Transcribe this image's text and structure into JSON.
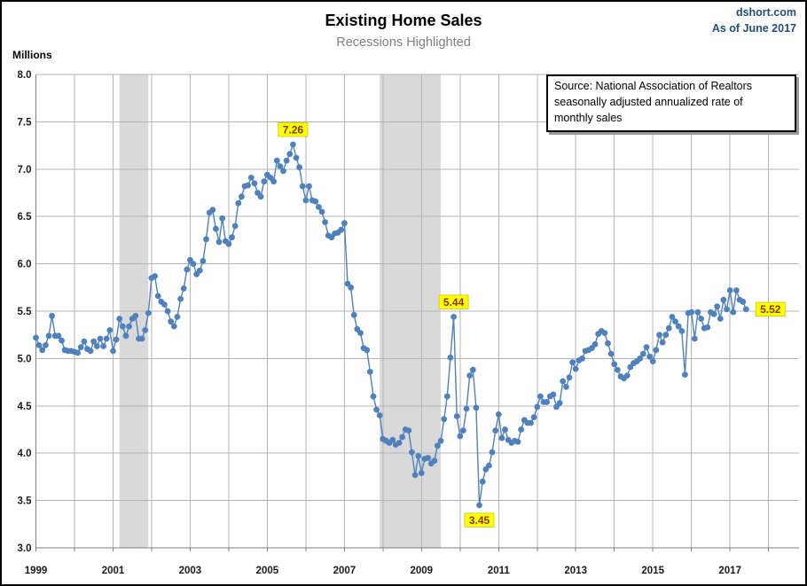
{
  "chart_data": {
    "type": "line",
    "title": "Existing Home Sales",
    "subtitle": "Recessions Highlighted",
    "ylabel": "Millions",
    "branding": {
      "site": "dshort.com",
      "as_of": "As of June 2017",
      "color": "#1F4E79"
    },
    "source_box": {
      "line1": "Source: National Association of Realtors",
      "line2": "seasonally adjusted annualized rate of",
      "line3": "monthly sales"
    },
    "y_axis": {
      "min": 3.0,
      "max": 8.0,
      "step": 0.5,
      "tick_labels": [
        "8.0",
        "7.5",
        "7.0",
        "6.5",
        "6.0",
        "5.5",
        "5.0",
        "4.5",
        "4.0",
        "3.5",
        "3.0"
      ]
    },
    "x_axis": {
      "start": 1999,
      "end": 2018,
      "right_edge": 2018.79,
      "tick_labels": [
        "1999",
        "2001",
        "2003",
        "2005",
        "2007",
        "2009",
        "2011",
        "2013",
        "2015",
        "2017"
      ],
      "minor_tick_every_year": true
    },
    "recessions": [
      {
        "start": "2001-03",
        "end": "2001-11"
      },
      {
        "start": "2007-12",
        "end": "2009-06"
      }
    ],
    "grid_color": "#B5B5B5",
    "axis_color": "#808080",
    "recession_band_color": "#D9D9D9",
    "annotation_style": {
      "bg": "#FFFF00",
      "border": "#C8C800",
      "text_color": "#8B3103"
    },
    "annotations": [
      {
        "label": "7.26",
        "year": 2005,
        "month": 9,
        "value": 7.26,
        "placement": "above"
      },
      {
        "label": "5.44",
        "year": 2009,
        "month": 11,
        "value": 5.44,
        "placement": "above"
      },
      {
        "label": "3.45",
        "year": 2010,
        "month": 7,
        "value": 3.45,
        "placement": "below"
      },
      {
        "label": "5.52",
        "year": 2017,
        "month": 6,
        "value": 5.52,
        "placement": "right"
      }
    ],
    "series": [
      {
        "name": "Existing Home Sales (SAAR, millions)",
        "color": "#4F81BD",
        "start_year": 1999,
        "start_month": 1,
        "values_by_year": {
          "1999": [
            5.22,
            5.14,
            5.09,
            5.14,
            5.24,
            5.45,
            5.24,
            5.24,
            5.19,
            5.09,
            5.08,
            5.08
          ],
          "2000": [
            5.07,
            5.06,
            5.12,
            5.18,
            5.1,
            5.08,
            5.18,
            5.13,
            5.21,
            5.13,
            5.21,
            5.3
          ],
          "2001": [
            5.08,
            5.2,
            5.42,
            5.34,
            5.24,
            5.34,
            5.42,
            5.45,
            5.21,
            5.21,
            5.3,
            5.48
          ],
          "2002": [
            5.85,
            5.87,
            5.66,
            5.6,
            5.57,
            5.5,
            5.39,
            5.34,
            5.44,
            5.63,
            5.74,
            5.94
          ],
          "2003": [
            6.04,
            6.0,
            5.89,
            5.93,
            6.03,
            6.26,
            6.54,
            6.57,
            6.37,
            6.23,
            6.48,
            6.24
          ],
          "2004": [
            6.21,
            6.28,
            6.4,
            6.64,
            6.71,
            6.82,
            6.83,
            6.91,
            6.85,
            6.75,
            6.71,
            6.87
          ],
          "2005": [
            6.94,
            6.91,
            6.87,
            7.09,
            7.03,
            6.98,
            7.09,
            7.16,
            7.26,
            7.12,
            7.02,
            6.82
          ],
          "2006": [
            6.67,
            6.82,
            6.67,
            6.66,
            6.6,
            6.55,
            6.44,
            6.3,
            6.28,
            6.32,
            6.33,
            6.36
          ],
          "2007": [
            6.43,
            5.79,
            5.75,
            5.46,
            5.31,
            5.27,
            5.11,
            5.09,
            4.86,
            4.6,
            4.46,
            4.4
          ],
          "2008": [
            4.15,
            4.13,
            4.11,
            4.14,
            4.09,
            4.11,
            4.17,
            4.25,
            4.24,
            4.01,
            3.77,
            3.97
          ],
          "2009": [
            3.79,
            3.94,
            3.95,
            3.89,
            3.92,
            4.08,
            4.13,
            4.36,
            4.6,
            5.01,
            5.44,
            4.39
          ],
          "2010": [
            4.18,
            4.24,
            4.47,
            4.82,
            4.88,
            4.48,
            3.45,
            3.7,
            3.83,
            3.87,
            4.01,
            4.24
          ],
          "2011": [
            4.41,
            4.16,
            4.25,
            4.14,
            4.11,
            4.13,
            4.12,
            4.25,
            4.35,
            4.32,
            4.32,
            4.38
          ],
          "2012": [
            4.49,
            4.6,
            4.54,
            4.54,
            4.6,
            4.62,
            4.49,
            4.53,
            4.76,
            4.7,
            4.8,
            4.96
          ],
          "2013": [
            4.89,
            4.98,
            5.0,
            5.08,
            5.09,
            5.11,
            5.15,
            5.26,
            5.29,
            5.27,
            5.16,
            5.05
          ],
          "2014": [
            4.94,
            4.88,
            4.81,
            4.79,
            4.82,
            4.91,
            4.95,
            4.97,
            5.0,
            5.05,
            5.12,
            5.02
          ],
          "2015": [
            4.97,
            5.09,
            5.25,
            5.17,
            5.25,
            5.32,
            5.44,
            5.39,
            5.34,
            5.29,
            4.83,
            5.48
          ],
          "2016": [
            5.49,
            5.21,
            5.49,
            5.42,
            5.32,
            5.33,
            5.49,
            5.47,
            5.55,
            5.42,
            5.62,
            5.52
          ],
          "2017": [
            5.72,
            5.49,
            5.72,
            5.62,
            5.6,
            5.52
          ]
        }
      }
    ]
  }
}
